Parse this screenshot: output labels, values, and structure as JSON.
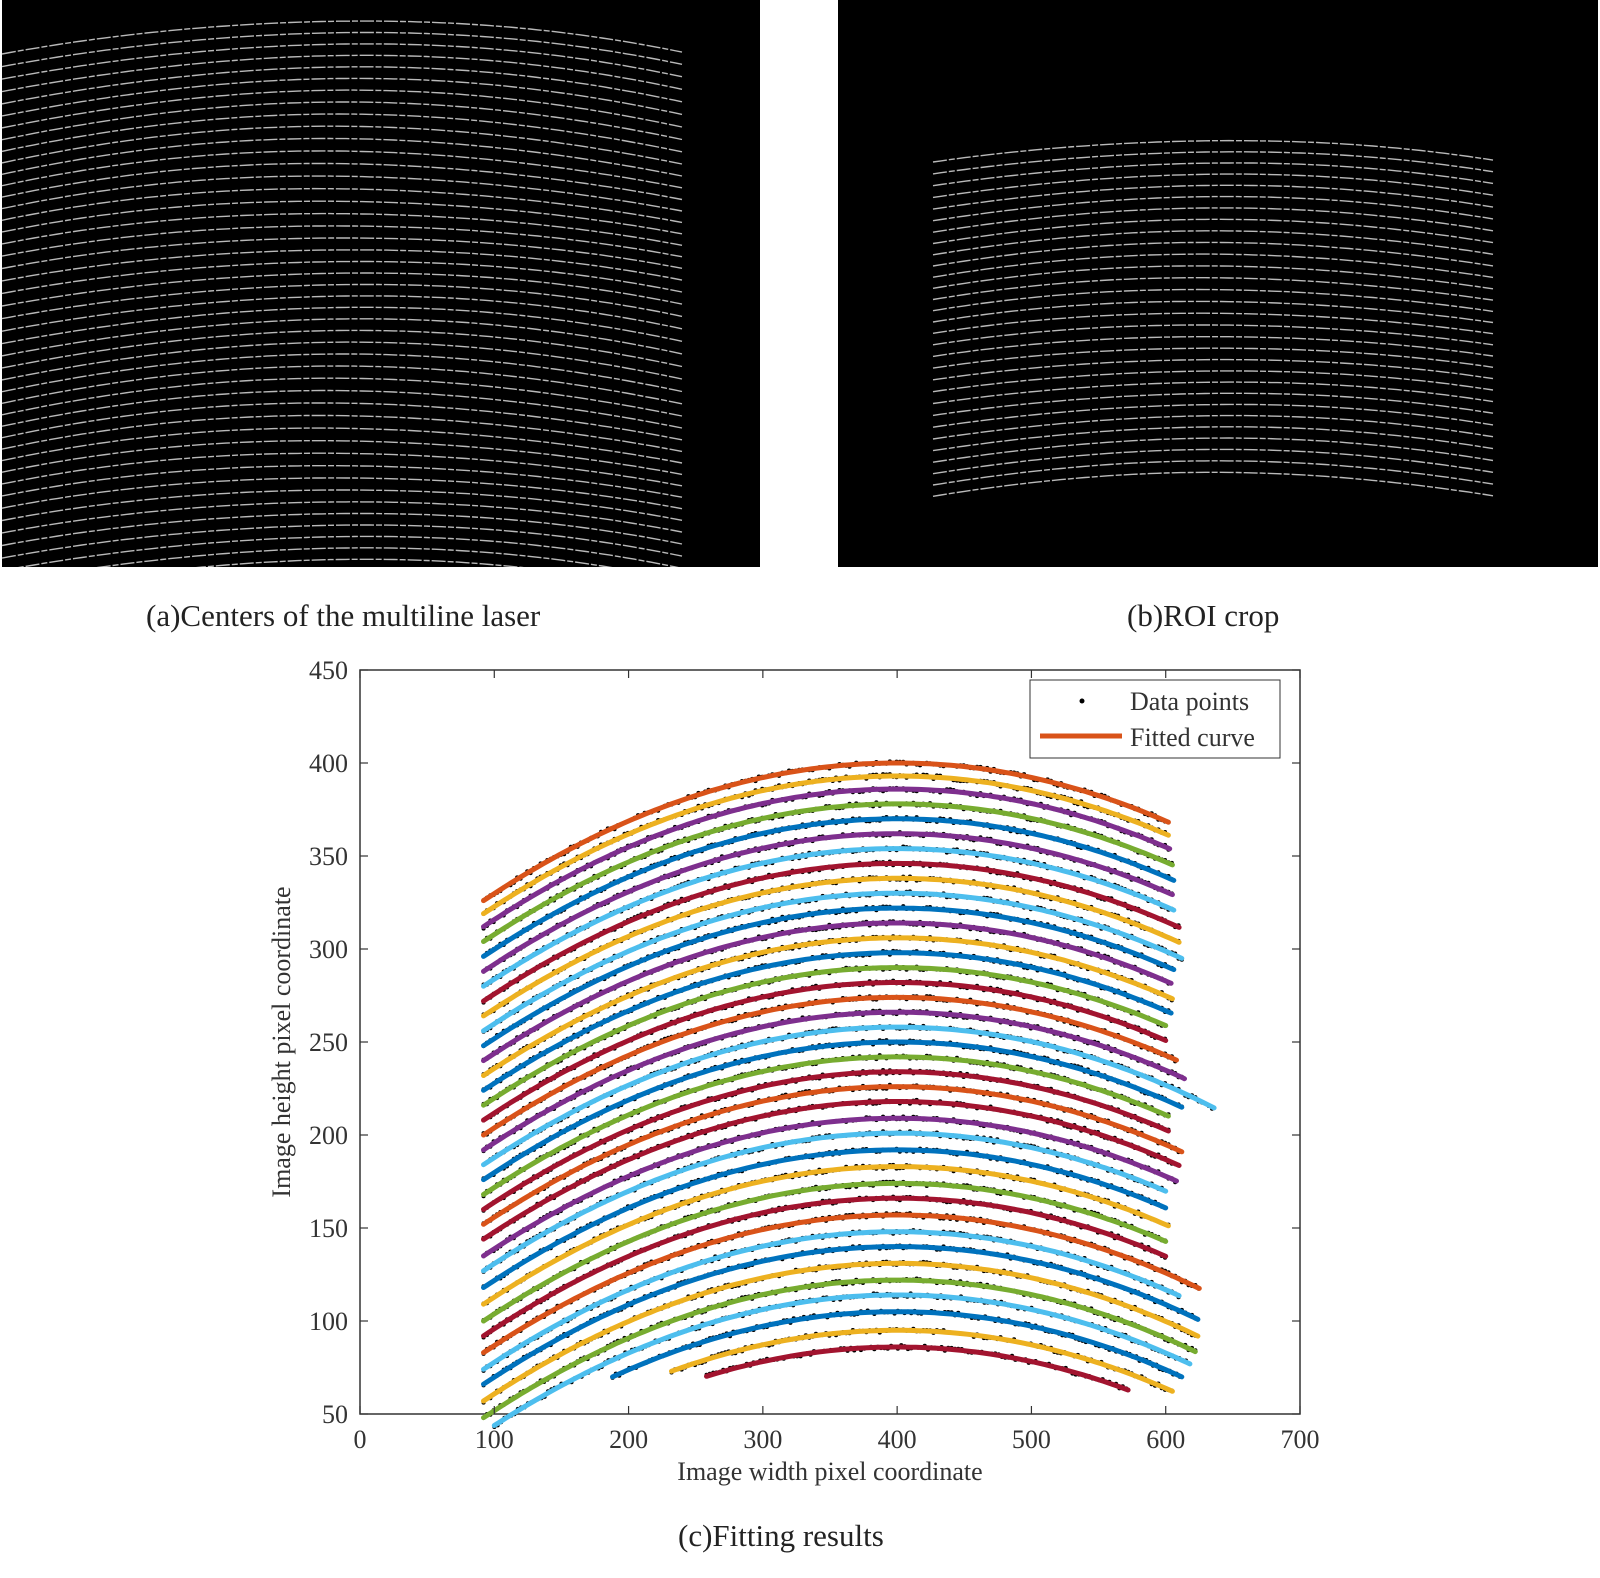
{
  "figure": {
    "panel_a": {
      "caption": "(a)Centers of the multiline laser"
    },
    "panel_b": {
      "caption": "(b)ROI crop"
    },
    "panel_c": {
      "caption": "(c)Fitting results"
    }
  },
  "colors": {
    "background": "#000000",
    "laser_line": "#d9d9d9",
    "data_point": "#000000",
    "curve_palette": [
      "#a2142f",
      "#edb120",
      "#0072bd",
      "#4dbeee",
      "#77ac30",
      "#7e2f8e",
      "#d95319"
    ]
  },
  "chart_data": {
    "type": "line",
    "xlabel": "Image width pixel coordinate",
    "ylabel": "Image height pixel coordinate",
    "xlim": [
      0,
      700
    ],
    "ylim": [
      50,
      450
    ],
    "xticks": [
      "0",
      "100",
      "200",
      "300",
      "400",
      "500",
      "600",
      "700"
    ],
    "yticks": [
      "50",
      "100",
      "150",
      "200",
      "250",
      "300",
      "350",
      "400",
      "450"
    ],
    "grid": false,
    "legend_position": "top-right",
    "legend": [
      {
        "label": "Data points",
        "marker": "dot",
        "color": "#000000"
      },
      {
        "label": "Fitted curve",
        "marker": "line",
        "color": "#d95319"
      }
    ],
    "series": [
      {
        "x": [
          258,
          572
        ],
        "peak_x": 400,
        "peak_y": 86,
        "curvature": 0.00078,
        "color": "#a2142f"
      },
      {
        "x": [
          232,
          605
        ],
        "peak_x": 400,
        "peak_y": 95,
        "curvature": 0.00078,
        "color": "#edb120"
      },
      {
        "x": [
          188,
          612
        ],
        "peak_x": 400,
        "peak_y": 105,
        "curvature": 0.00078,
        "color": "#0072bd"
      },
      {
        "x": [
          100,
          618
        ],
        "peak_x": 400,
        "peak_y": 114,
        "curvature": 0.00078,
        "color": "#4dbeee"
      },
      {
        "x": [
          92,
          622
        ],
        "peak_x": 400,
        "peak_y": 122,
        "curvature": 0.00078,
        "color": "#77ac30"
      },
      {
        "x": [
          92,
          624
        ],
        "peak_x": 400,
        "peak_y": 131,
        "curvature": 0.00078,
        "color": "#edb120"
      },
      {
        "x": [
          92,
          624
        ],
        "peak_x": 400,
        "peak_y": 140,
        "curvature": 0.00078,
        "color": "#0072bd"
      },
      {
        "x": [
          92,
          610
        ],
        "peak_x": 400,
        "peak_y": 148,
        "curvature": 0.00078,
        "color": "#4dbeee"
      },
      {
        "x": [
          92,
          625
        ],
        "peak_x": 400,
        "peak_y": 157,
        "curvature": 0.00078,
        "color": "#d95319"
      },
      {
        "x": [
          92,
          600
        ],
        "peak_x": 400,
        "peak_y": 166,
        "curvature": 0.00078,
        "color": "#a2142f"
      },
      {
        "x": [
          92,
          600
        ],
        "peak_x": 400,
        "peak_y": 174,
        "curvature": 0.00078,
        "color": "#77ac30"
      },
      {
        "x": [
          92,
          602
        ],
        "peak_x": 400,
        "peak_y": 183,
        "curvature": 0.00078,
        "color": "#edb120"
      },
      {
        "x": [
          92,
          600
        ],
        "peak_x": 400,
        "peak_y": 192,
        "curvature": 0.00078,
        "color": "#0072bd"
      },
      {
        "x": [
          92,
          600
        ],
        "peak_x": 400,
        "peak_y": 201,
        "curvature": 0.00078,
        "color": "#4dbeee"
      },
      {
        "x": [
          92,
          608
        ],
        "peak_x": 400,
        "peak_y": 209,
        "curvature": 0.00078,
        "color": "#7e2f8e"
      },
      {
        "x": [
          92,
          610
        ],
        "peak_x": 400,
        "peak_y": 218,
        "curvature": 0.00078,
        "color": "#a2142f"
      },
      {
        "x": [
          92,
          612
        ],
        "peak_x": 400,
        "peak_y": 226,
        "curvature": 0.00078,
        "color": "#d95319"
      },
      {
        "x": [
          92,
          602
        ],
        "peak_x": 400,
        "peak_y": 234,
        "curvature": 0.00078,
        "color": "#a2142f"
      },
      {
        "x": [
          92,
          602
        ],
        "peak_x": 400,
        "peak_y": 242,
        "curvature": 0.00078,
        "color": "#77ac30"
      },
      {
        "x": [
          92,
          612
        ],
        "peak_x": 400,
        "peak_y": 250,
        "curvature": 0.00078,
        "color": "#0072bd"
      },
      {
        "x": [
          92,
          636
        ],
        "peak_x": 400,
        "peak_y": 258,
        "curvature": 0.00078,
        "color": "#4dbeee"
      },
      {
        "x": [
          92,
          614
        ],
        "peak_x": 400,
        "peak_y": 266,
        "curvature": 0.00078,
        "color": "#7e2f8e"
      },
      {
        "x": [
          92,
          608
        ],
        "peak_x": 400,
        "peak_y": 274,
        "curvature": 0.00078,
        "color": "#d95319"
      },
      {
        "x": [
          92,
          600
        ],
        "peak_x": 400,
        "peak_y": 282,
        "curvature": 0.00078,
        "color": "#a2142f"
      },
      {
        "x": [
          92,
          600
        ],
        "peak_x": 400,
        "peak_y": 290,
        "curvature": 0.00078,
        "color": "#77ac30"
      },
      {
        "x": [
          92,
          604
        ],
        "peak_x": 400,
        "peak_y": 298,
        "curvature": 0.00078,
        "color": "#0072bd"
      },
      {
        "x": [
          92,
          605
        ],
        "peak_x": 400,
        "peak_y": 306,
        "curvature": 0.00078,
        "color": "#edb120"
      },
      {
        "x": [
          92,
          604
        ],
        "peak_x": 400,
        "peak_y": 314,
        "curvature": 0.00078,
        "color": "#7e2f8e"
      },
      {
        "x": [
          92,
          606
        ],
        "peak_x": 400,
        "peak_y": 322,
        "curvature": 0.00078,
        "color": "#0072bd"
      },
      {
        "x": [
          92,
          612
        ],
        "peak_x": 400,
        "peak_y": 330,
        "curvature": 0.00078,
        "color": "#4dbeee"
      },
      {
        "x": [
          92,
          610
        ],
        "peak_x": 400,
        "peak_y": 338,
        "curvature": 0.00078,
        "color": "#edb120"
      },
      {
        "x": [
          92,
          610
        ],
        "peak_x": 400,
        "peak_y": 346,
        "curvature": 0.00078,
        "color": "#a2142f"
      },
      {
        "x": [
          92,
          606
        ],
        "peak_x": 400,
        "peak_y": 354,
        "curvature": 0.00078,
        "color": "#4dbeee"
      },
      {
        "x": [
          92,
          605
        ],
        "peak_x": 400,
        "peak_y": 362,
        "curvature": 0.00078,
        "color": "#7e2f8e"
      },
      {
        "x": [
          92,
          606
        ],
        "peak_x": 400,
        "peak_y": 370,
        "curvature": 0.00078,
        "color": "#0072bd"
      },
      {
        "x": [
          92,
          605
        ],
        "peak_x": 400,
        "peak_y": 378,
        "curvature": 0.00078,
        "color": "#77ac30"
      },
      {
        "x": [
          92,
          603
        ],
        "peak_x": 400,
        "peak_y": 386,
        "curvature": 0.00078,
        "color": "#7e2f8e"
      },
      {
        "x": [
          92,
          602
        ],
        "peak_x": 400,
        "peak_y": 393,
        "curvature": 0.00078,
        "color": "#edb120"
      },
      {
        "x": [
          92,
          602
        ],
        "peak_x": 400,
        "peak_y": 400,
        "curvature": 0.00078,
        "color": "#d95319"
      }
    ]
  }
}
